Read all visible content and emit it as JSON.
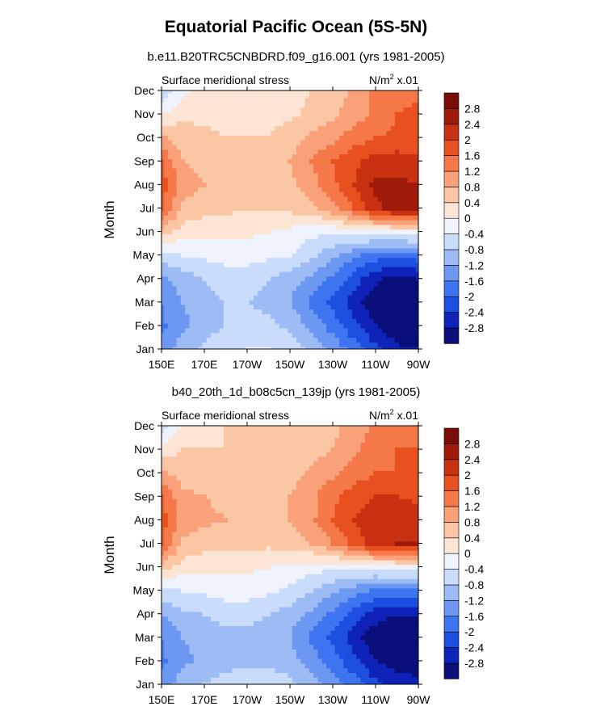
{
  "main_title": "Equatorial Pacific Ocean (5S-5N)",
  "chart_data": [
    {
      "type": "heatmap",
      "title": "b.e11.B20TRC5CNBDRD.f09_g16.001 (yrs 1981-2005)",
      "left_string": "Surface meridional stress",
      "units_prefix": "N/m",
      "units_exp": "2",
      "units_suffix": " x.01",
      "ylabel": "Month",
      "xlabel": "",
      "x_ticks": [
        "150E",
        "170E",
        "170W",
        "150W",
        "130W",
        "110W",
        "90W"
      ],
      "x": [
        150,
        160,
        170,
        180,
        190,
        200,
        210,
        220,
        230,
        240,
        250,
        260,
        270
      ],
      "y": [
        "Jan",
        "Feb",
        "Mar",
        "Apr",
        "May",
        "Jun",
        "Jul",
        "Aug",
        "Sep",
        "Oct",
        "Nov",
        "Dec"
      ],
      "z": [
        [
          -1.4,
          -1.0,
          -0.7,
          -0.5,
          -0.4,
          -0.4,
          -0.6,
          -0.9,
          -1.3,
          -1.8,
          -2.3,
          -2.7,
          -2.8
        ],
        [
          -1.7,
          -1.3,
          -1.0,
          -0.8,
          -0.7,
          -0.7,
          -0.9,
          -1.3,
          -1.8,
          -2.3,
          -2.8,
          -3.1,
          -3.2
        ],
        [
          -1.6,
          -1.2,
          -0.9,
          -0.8,
          -0.8,
          -0.9,
          -1.2,
          -1.7,
          -2.1,
          -2.6,
          -3.1,
          -3.3,
          -3.3
        ],
        [
          -1.3,
          -1.0,
          -0.8,
          -0.7,
          -0.7,
          -0.8,
          -1.0,
          -1.3,
          -1.7,
          -2.2,
          -2.7,
          -3.0,
          -2.8
        ],
        [
          -0.6,
          -0.4,
          -0.3,
          -0.2,
          -0.2,
          -0.3,
          -0.4,
          -0.7,
          -1.1,
          -1.5,
          -1.8,
          -1.9,
          -1.8
        ],
        [
          0.6,
          0.2,
          0.1,
          0.1,
          0.1,
          0.0,
          -0.1,
          -0.3,
          -0.3,
          -0.2,
          -0.2,
          -0.1,
          -0.1
        ],
        [
          1.7,
          0.7,
          0.6,
          0.5,
          0.4,
          0.4,
          0.5,
          0.7,
          1.1,
          1.6,
          2.3,
          2.6,
          2.7
        ],
        [
          1.8,
          1.0,
          0.8,
          0.7,
          0.6,
          0.6,
          0.7,
          1.0,
          1.5,
          2.0,
          2.5,
          2.5,
          2.4
        ],
        [
          1.6,
          0.8,
          0.7,
          0.6,
          0.6,
          0.6,
          0.8,
          1.2,
          1.6,
          1.9,
          2.2,
          2.2,
          2.1
        ],
        [
          0.9,
          0.6,
          0.5,
          0.4,
          0.4,
          0.4,
          0.6,
          0.9,
          1.1,
          1.4,
          1.6,
          1.7,
          1.7
        ],
        [
          0.0,
          0.3,
          0.3,
          0.3,
          0.3,
          0.3,
          0.3,
          0.5,
          0.7,
          1.0,
          1.3,
          1.6,
          1.7
        ],
        [
          -0.8,
          -0.1,
          0.2,
          0.2,
          0.3,
          0.3,
          0.3,
          0.4,
          0.6,
          0.9,
          1.3,
          1.5,
          1.5
        ]
      ],
      "levels": [
        "-2.8",
        "-2.4",
        "-2",
        "-1.6",
        "-1.2",
        "-0.8",
        "-0.4",
        "0",
        "0.4",
        "0.8",
        "1.2",
        "1.6",
        "2",
        "2.4",
        "2.8"
      ],
      "colors": [
        "#0b0f7a",
        "#0f23b8",
        "#1c4fe0",
        "#3f74f0",
        "#6d98f2",
        "#9dbcf6",
        "#cadcfb",
        "#eef3fe",
        "#fde5d5",
        "#fbc6a4",
        "#f9a179",
        "#f47848",
        "#e8501f",
        "#c83111",
        "#a01a0a",
        "#7a0c07"
      ]
    },
    {
      "type": "heatmap",
      "title": "b40_20th_1d_b08c5cn_139jp (yrs 1981-2005)",
      "left_string": "Surface meridional stress",
      "units_prefix": "N/m",
      "units_exp": "2",
      "units_suffix": " x.01",
      "ylabel": "Month",
      "xlabel": "",
      "x_ticks": [
        "150E",
        "170E",
        "170W",
        "150W",
        "130W",
        "110W",
        "90W"
      ],
      "x": [
        150,
        160,
        170,
        180,
        190,
        200,
        210,
        220,
        230,
        240,
        250,
        260,
        270
      ],
      "y": [
        "Jan",
        "Feb",
        "Mar",
        "Apr",
        "May",
        "Jun",
        "Jul",
        "Aug",
        "Sep",
        "Oct",
        "Nov",
        "Dec"
      ],
      "z": [
        [
          -1.4,
          -1.0,
          -0.8,
          -0.6,
          -0.5,
          -0.6,
          -0.7,
          -1.0,
          -1.4,
          -1.8,
          -2.3,
          -2.6,
          -2.7
        ],
        [
          -1.7,
          -1.3,
          -1.1,
          -1.0,
          -0.9,
          -0.9,
          -1.0,
          -1.4,
          -1.8,
          -2.3,
          -2.8,
          -3.0,
          -3.0
        ],
        [
          -1.6,
          -1.2,
          -1.0,
          -0.9,
          -0.9,
          -1.0,
          -1.2,
          -1.7,
          -2.1,
          -2.6,
          -3.1,
          -3.2,
          -3.2
        ],
        [
          -1.2,
          -0.9,
          -0.8,
          -0.7,
          -0.7,
          -0.8,
          -1.0,
          -1.3,
          -1.7,
          -2.2,
          -2.6,
          -2.8,
          -2.7
        ],
        [
          -0.5,
          -0.4,
          -0.3,
          -0.2,
          -0.2,
          -0.3,
          -0.5,
          -0.8,
          -1.1,
          -1.4,
          -1.7,
          -1.8,
          -1.7
        ],
        [
          0.6,
          0.2,
          0.1,
          0.1,
          0.1,
          0.0,
          -0.1,
          -0.2,
          -0.3,
          -0.2,
          -0.2,
          -0.1,
          -0.1
        ],
        [
          1.7,
          0.7,
          0.6,
          0.5,
          0.5,
          0.5,
          0.6,
          0.8,
          1.2,
          1.7,
          2.3,
          2.4,
          2.4
        ],
        [
          1.8,
          1.0,
          0.9,
          0.8,
          0.7,
          0.7,
          0.8,
          1.1,
          1.6,
          2.0,
          2.3,
          2.3,
          2.2
        ],
        [
          1.6,
          0.9,
          0.8,
          0.7,
          0.7,
          0.7,
          0.8,
          1.1,
          1.5,
          1.8,
          2.0,
          2.0,
          1.9
        ],
        [
          0.9,
          0.6,
          0.6,
          0.6,
          0.6,
          0.6,
          0.6,
          0.9,
          1.1,
          1.4,
          1.6,
          1.6,
          1.6
        ],
        [
          0.1,
          0.4,
          0.4,
          0.4,
          0.5,
          0.5,
          0.5,
          0.6,
          0.8,
          1.1,
          1.4,
          1.6,
          1.6
        ],
        [
          -0.6,
          0.1,
          0.3,
          0.4,
          0.4,
          0.4,
          0.4,
          0.5,
          0.7,
          1.0,
          1.3,
          1.4,
          1.4
        ]
      ],
      "levels": [
        "-2.8",
        "-2.4",
        "-2",
        "-1.6",
        "-1.2",
        "-0.8",
        "-0.4",
        "0",
        "0.4",
        "0.8",
        "1.2",
        "1.6",
        "2",
        "2.4",
        "2.8"
      ],
      "colors": [
        "#0b0f7a",
        "#0f23b8",
        "#1c4fe0",
        "#3f74f0",
        "#6d98f2",
        "#9dbcf6",
        "#cadcfb",
        "#eef3fe",
        "#fde5d5",
        "#fbc6a4",
        "#f9a179",
        "#f47848",
        "#e8501f",
        "#c83111",
        "#a01a0a",
        "#7a0c07"
      ]
    }
  ]
}
